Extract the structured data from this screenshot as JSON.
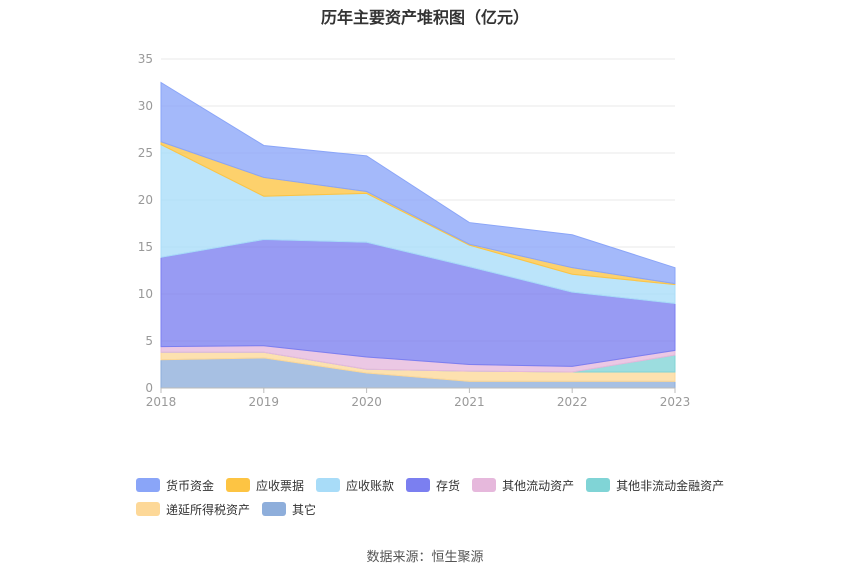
{
  "chart_data": {
    "type": "area",
    "title": "历年主要资产堆积图（亿元）",
    "stacked": true,
    "x": [
      "2018",
      "2019",
      "2020",
      "2021",
      "2022",
      "2023"
    ],
    "ylim": [
      0,
      35
    ],
    "yticks": [
      0,
      5,
      10,
      15,
      20,
      25,
      30,
      35
    ],
    "grid": true,
    "legend_position": "bottom",
    "series": [
      {
        "name": "其它",
        "color": "#8eaedb",
        "values": [
          3.0,
          3.2,
          1.6,
          0.7,
          0.7,
          0.7
        ]
      },
      {
        "name": "递延所得税资产",
        "color": "#fdd898",
        "values": [
          0.8,
          0.6,
          0.4,
          1.1,
          1.0,
          1.0
        ]
      },
      {
        "name": "其他非流动金融资产",
        "color": "#80d4d6",
        "values": [
          0,
          0,
          0,
          0,
          0,
          1.8
        ]
      },
      {
        "name": "其他流动资产",
        "color": "#e6b8dc",
        "values": [
          0.6,
          0.7,
          1.3,
          0.7,
          0.6,
          0.5
        ]
      },
      {
        "name": "存货",
        "color": "#7b7ff0",
        "values": [
          9.5,
          11.3,
          12.2,
          10.4,
          7.9,
          5.0
        ]
      },
      {
        "name": "应收账款",
        "color": "#a8dcf8",
        "values": [
          12.0,
          4.6,
          5.2,
          2.3,
          1.9,
          2.0
        ]
      },
      {
        "name": "应收票据",
        "color": "#fdc443",
        "values": [
          0.3,
          2.0,
          0.2,
          0.1,
          0.7,
          0.1
        ]
      },
      {
        "name": "货币资金",
        "color": "#8aa5f8",
        "values": [
          6.3,
          3.4,
          3.8,
          2.3,
          3.5,
          1.7
        ]
      }
    ]
  },
  "legend": [
    {
      "name": "货币资金",
      "color": "#8aa5f8"
    },
    {
      "name": "应收票据",
      "color": "#fdc443"
    },
    {
      "name": "应收账款",
      "color": "#a8dcf8"
    },
    {
      "name": "存货",
      "color": "#7b7ff0"
    },
    {
      "name": "其他流动资产",
      "color": "#e6b8dc"
    },
    {
      "name": "其他非流动金融资产",
      "color": "#80d4d6"
    },
    {
      "name": "递延所得税资产",
      "color": "#fdd898"
    },
    {
      "name": "其它",
      "color": "#8eaedb"
    }
  ],
  "source": "数据来源：恒生聚源"
}
